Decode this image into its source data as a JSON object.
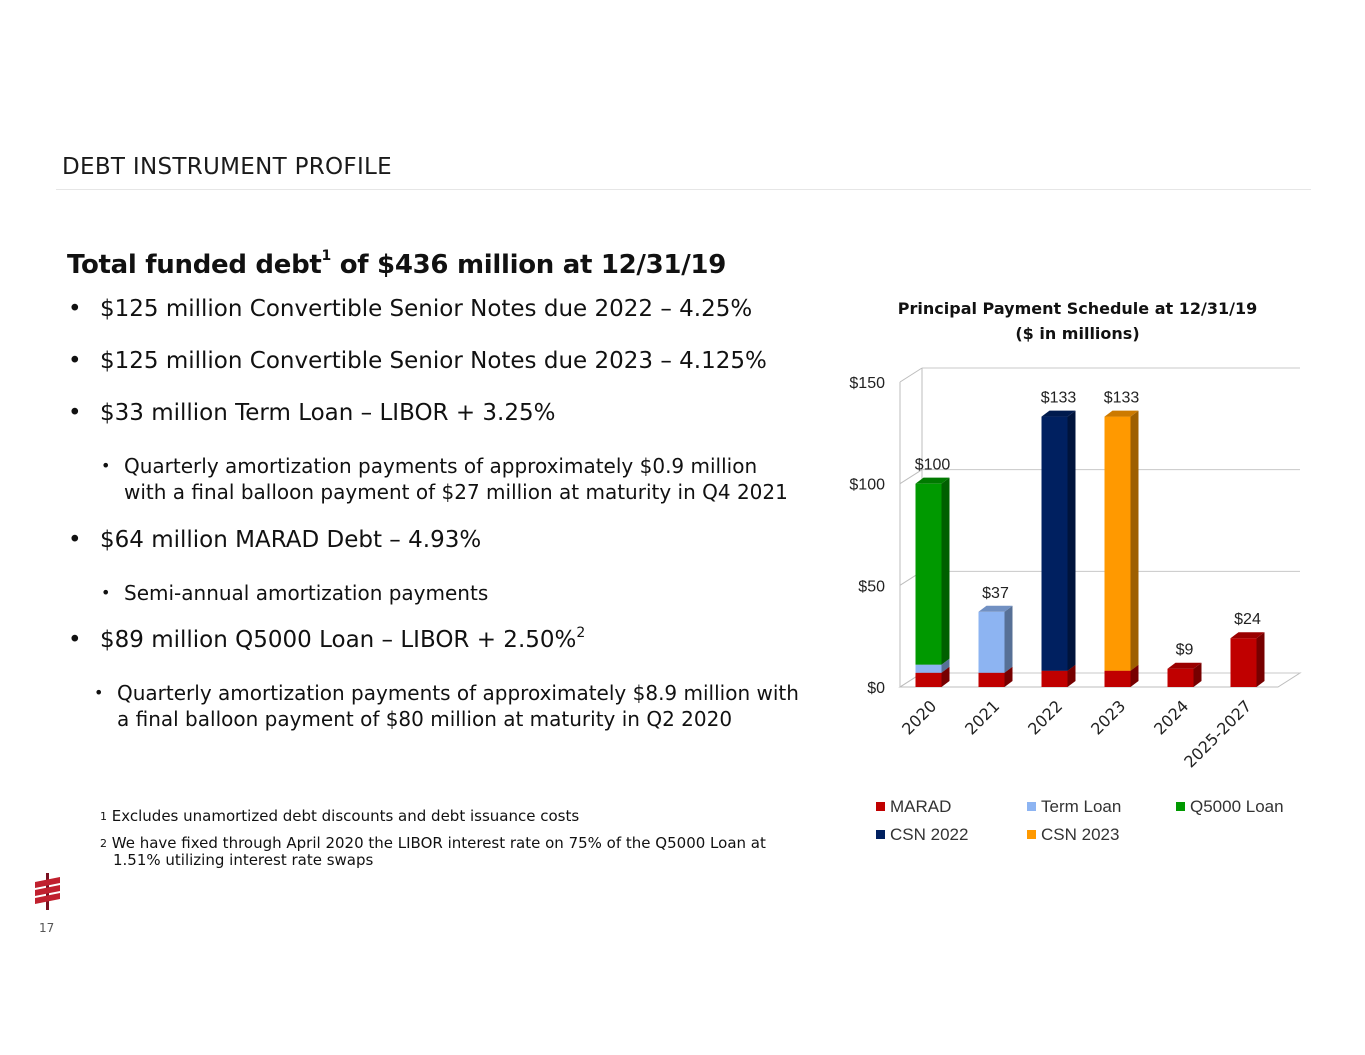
{
  "header": {
    "section_title": "DEBT INSTRUMENT PROFILE"
  },
  "headline": {
    "text": "Total funded debt",
    "sup": "1",
    "rest": " of $436 million at 12/31/19"
  },
  "bullets": [
    {
      "text": "$125 million Convertible Senior Notes due 2022 – 4.25%"
    },
    {
      "text": "$125 million Convertible Senior Notes due 2023 – 4.125%"
    },
    {
      "text": "$33 million Term Loan – LIBOR + 3.25%"
    },
    {
      "sub_line1": "Quarterly amortization payments of approximately $0.9 million",
      "sub_line2": "with a final balloon payment of $27 million at maturity in Q4 2021"
    },
    {
      "text": "$64 million MARAD Debt – 4.93%"
    },
    {
      "sub_line1": "Semi-annual amortization payments"
    },
    {
      "text": "$89 million Q5000 Loan – LIBOR + 2.50%",
      "sup": "2"
    },
    {
      "sub_line1": "Quarterly amortization payments of approximately $8.9 million with",
      "sub_line2": "a final balloon payment of $80 million at maturity in Q2 2020"
    }
  ],
  "bullet_glyph": "•",
  "footnotes": [
    {
      "num": "1",
      "text": "Excludes unamortized debt discounts and debt issuance costs"
    },
    {
      "num": "2",
      "text": "We have fixed through April 2020 the LIBOR interest rate on 75% of the Q5000 Loan at",
      "text2": "1.51% utilizing interest rate swaps"
    }
  ],
  "page_number": "17",
  "colors": {
    "MARAD": "#c00000",
    "Term Loan": "#8db4f2",
    "Q5000 Loan": "#009900",
    "CSN 2022": "#002060",
    "CSN 2023": "#ff9900"
  },
  "chart_data": {
    "type": "bar",
    "stacked": true,
    "style": "3d",
    "title": "Principal Payment Schedule at 12/31/19",
    "subtitle": "($ in millions)",
    "categories": [
      "2020",
      "2021",
      "2022",
      "2023",
      "2024",
      "2025-2027"
    ],
    "series": [
      {
        "name": "MARAD",
        "values": [
          7,
          7,
          8,
          8,
          9,
          24
        ]
      },
      {
        "name": "Term Loan",
        "values": [
          4,
          30,
          0,
          0,
          0,
          0
        ]
      },
      {
        "name": "Q5000 Loan",
        "values": [
          89,
          0,
          0,
          0,
          0,
          0
        ]
      },
      {
        "name": "CSN 2022",
        "values": [
          0,
          0,
          125,
          0,
          0,
          0
        ]
      },
      {
        "name": "CSN 2023",
        "values": [
          0,
          0,
          0,
          125,
          0,
          0
        ]
      }
    ],
    "totals_labels": [
      "$100",
      "$37",
      "$133",
      "$133",
      "$9",
      "$24"
    ],
    "y_ticks": [
      "$0",
      "$50",
      "$100",
      "$150"
    ],
    "y_tick_values": [
      0,
      50,
      100,
      150
    ],
    "ylim": [
      0,
      150
    ],
    "grid": true,
    "legend": "bottom"
  }
}
